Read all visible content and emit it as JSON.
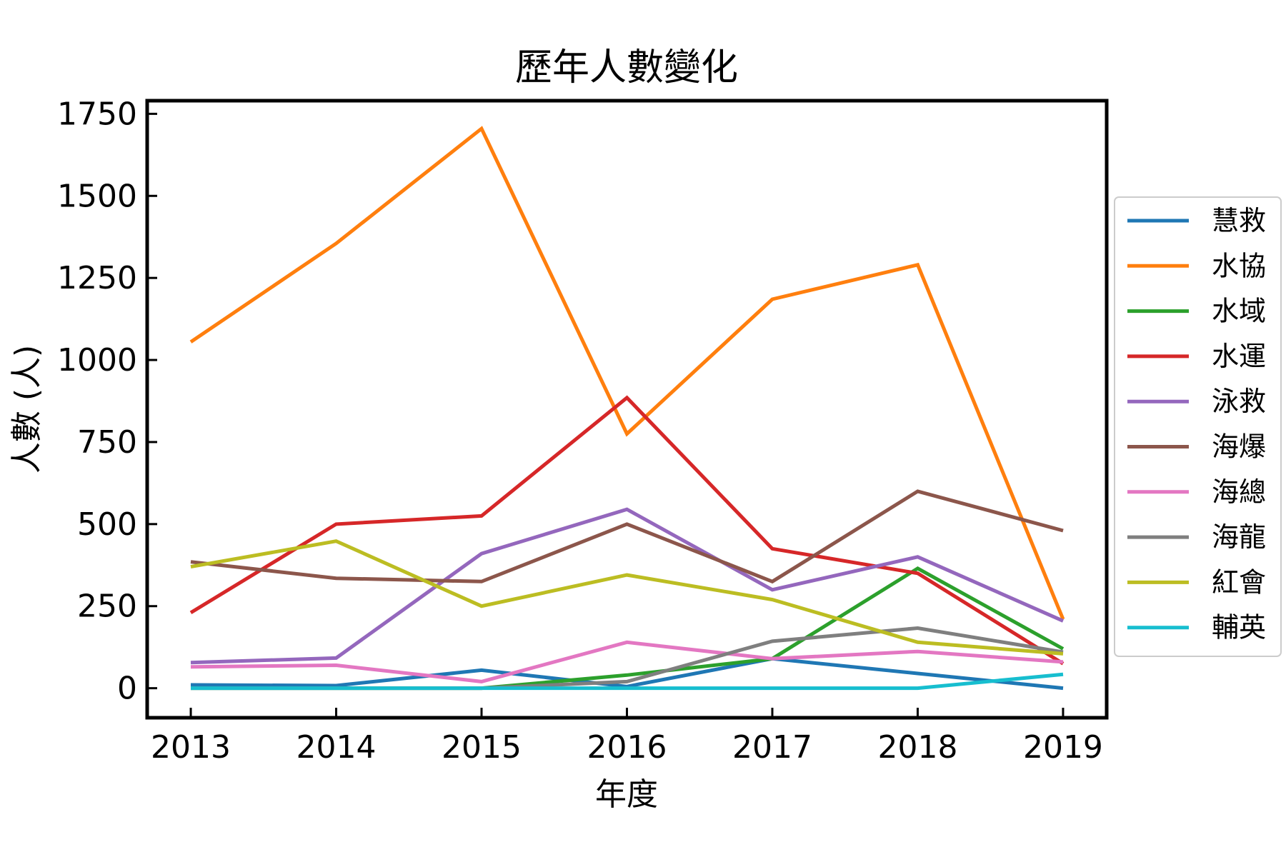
{
  "chart_data": {
    "type": "line",
    "title": "歷年人數變化",
    "xlabel": "年度",
    "ylabel": "人數 (人)",
    "x": [
      2013,
      2014,
      2015,
      2016,
      2017,
      2018,
      2019
    ],
    "xticks": [
      "2013",
      "2014",
      "2015",
      "2016",
      "2017",
      "2018",
      "2019"
    ],
    "yticks": [
      0,
      250,
      500,
      750,
      1000,
      1250,
      1500,
      1750
    ],
    "ylim": [
      -90,
      1790
    ],
    "xlim": [
      2012.7,
      2019.3
    ],
    "grid": false,
    "legend_position": "center-right",
    "series": [
      {
        "name": "慧救",
        "color": "#1f77b4",
        "values": [
          10,
          8,
          55,
          5,
          90,
          45,
          0
        ]
      },
      {
        "name": "水協",
        "color": "#ff7f0e",
        "values": [
          1055,
          1355,
          1705,
          775,
          1185,
          1290,
          210
        ]
      },
      {
        "name": "水域",
        "color": "#2ca02c",
        "values": [
          0,
          0,
          0,
          40,
          90,
          365,
          120
        ]
      },
      {
        "name": "水運",
        "color": "#d62728",
        "values": [
          230,
          500,
          525,
          885,
          425,
          350,
          75
        ]
      },
      {
        "name": "泳救",
        "color": "#9467bd",
        "values": [
          78,
          92,
          410,
          545,
          300,
          400,
          205
        ]
      },
      {
        "name": "海爆",
        "color": "#8c564b",
        "values": [
          385,
          335,
          325,
          500,
          325,
          600,
          480
        ]
      },
      {
        "name": "海總",
        "color": "#e377c2",
        "values": [
          65,
          70,
          20,
          140,
          90,
          112,
          80
        ]
      },
      {
        "name": "海龍",
        "color": "#7f7f7f",
        "values": [
          0,
          0,
          0,
          20,
          143,
          183,
          110
        ]
      },
      {
        "name": "紅會",
        "color": "#bcbd22",
        "values": [
          370,
          448,
          250,
          345,
          270,
          140,
          105
        ]
      },
      {
        "name": "輔英",
        "color": "#17becf",
        "values": [
          0,
          0,
          0,
          0,
          0,
          0,
          42
        ]
      }
    ]
  }
}
